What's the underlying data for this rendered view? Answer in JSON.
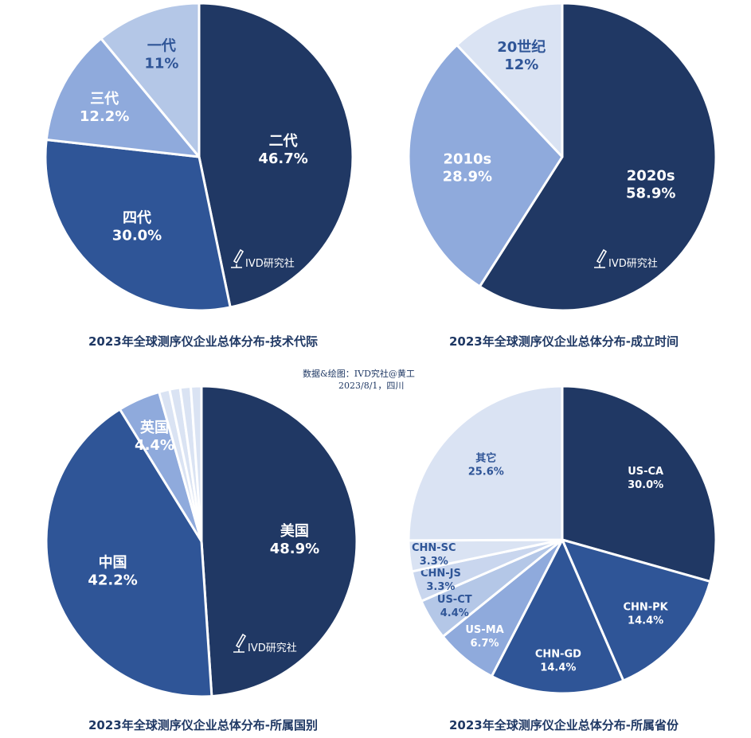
{
  "credit": {
    "line1": "数据&绘图：IVD究社@黄工",
    "line2": "2023/8/1，四川"
  },
  "watermark": "IVD研究社",
  "chart_data": [
    {
      "type": "pie",
      "title": "2023年全球测序仪企业总体分布-技术代际",
      "slices": [
        {
          "label": "二代",
          "value": 46.7,
          "display": "46.7%",
          "color": "#203864",
          "text_color": "#ffffff"
        },
        {
          "label": "四代",
          "value": 30.0,
          "display": "30.0%",
          "color": "#2f5597",
          "text_color": "#ffffff"
        },
        {
          "label": "三代",
          "value": 12.2,
          "display": "12.2%",
          "color": "#8faadc",
          "text_color": "#ffffff"
        },
        {
          "label": "一代",
          "value": 11,
          "display": "11%",
          "color": "#b4c7e7",
          "text_color": "#2f5597"
        }
      ]
    },
    {
      "type": "pie",
      "title": "2023年全球测序仪企业总体分布-成立时间",
      "slices": [
        {
          "label": "2020s",
          "value": 58.9,
          "display": "58.9%",
          "color": "#203864",
          "text_color": "#ffffff"
        },
        {
          "label": "2010s",
          "value": 28.9,
          "display": "28.9%",
          "color": "#8faadc",
          "text_color": "#ffffff"
        },
        {
          "label": "20世纪",
          "value": 12,
          "display": "12%",
          "color": "#dae3f3",
          "text_color": "#2f5597"
        }
      ]
    },
    {
      "type": "pie",
      "title": "2023年全球测序仪企业总体分布-所属国别",
      "slices": [
        {
          "label": "美国",
          "value": 48.9,
          "display": "48.9%",
          "color": "#203864",
          "text_color": "#ffffff"
        },
        {
          "label": "中国",
          "value": 42.2,
          "display": "42.2%",
          "color": "#2f5597",
          "text_color": "#ffffff"
        },
        {
          "label": "英国",
          "value": 4.4,
          "display": "4.4%",
          "color": "#8faadc",
          "text_color": "#ffffff"
        },
        {
          "label": "",
          "value": 1.1,
          "display": "",
          "color": "#dae3f3",
          "text_color": "#2f5597"
        },
        {
          "label": "",
          "value": 1.1,
          "display": "",
          "color": "#dae3f3",
          "text_color": "#2f5597"
        },
        {
          "label": "",
          "value": 1.1,
          "display": "",
          "color": "#dae3f3",
          "text_color": "#2f5597"
        },
        {
          "label": "",
          "value": 1.1,
          "display": "",
          "color": "#dae3f3",
          "text_color": "#2f5597"
        }
      ]
    },
    {
      "type": "pie",
      "title": "2023年全球测序仪企业总体分布-所属省份",
      "slices": [
        {
          "label": "US-CA",
          "value": 30.0,
          "display": "30.0%",
          "color": "#203864",
          "text_color": "#ffffff"
        },
        {
          "label": "CHN-PK",
          "value": 14.4,
          "display": "14.4%",
          "color": "#2f5597",
          "text_color": "#ffffff"
        },
        {
          "label": "CHN-GD",
          "value": 14.4,
          "display": "14.4%",
          "color": "#2f5597",
          "text_color": "#ffffff"
        },
        {
          "label": "US-MA",
          "value": 6.7,
          "display": "6.7%",
          "color": "#8faadc",
          "text_color": "#ffffff"
        },
        {
          "label": "US-CT",
          "value": 4.4,
          "display": "4.4%",
          "color": "#b4c7e7",
          "text_color": "#2f5597"
        },
        {
          "label": "CHN-JS",
          "value": 3.3,
          "display": "3.3%",
          "color": "#c9d6ee",
          "text_color": "#2f5597"
        },
        {
          "label": "CHN-SC",
          "value": 3.3,
          "display": "3.3%",
          "color": "#dae3f3",
          "text_color": "#2f5597"
        },
        {
          "label": "其它",
          "value": 25.6,
          "display": "25.6%",
          "color": "#dae3f3",
          "text_color": "#2f5597"
        }
      ]
    }
  ]
}
